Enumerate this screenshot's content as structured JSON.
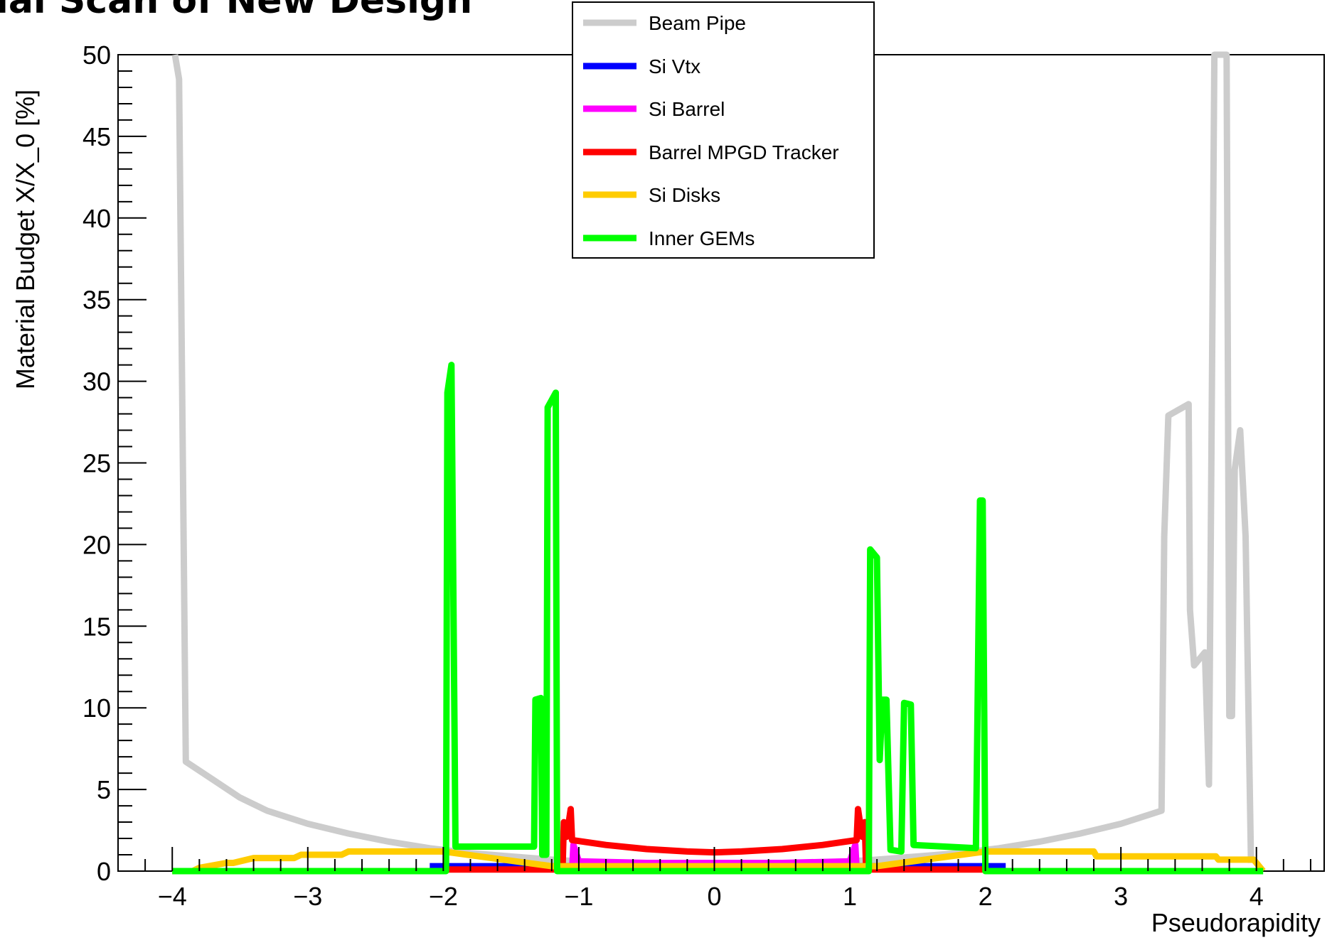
{
  "slide": {
    "title": "ial Scan of New Design"
  },
  "chart_data": {
    "type": "line",
    "title": "",
    "xlabel": "Pseudorapidity",
    "ylabel": "Material Budget X/X_0 [%]",
    "xlim": [
      -4.4,
      4.5
    ],
    "ylim": [
      0,
      50
    ],
    "x_ticks": [
      {
        "value": -4,
        "label": "−4"
      },
      {
        "value": -3,
        "label": "−3"
      },
      {
        "value": -2,
        "label": "−2"
      },
      {
        "value": -1,
        "label": "−1"
      },
      {
        "value": 0,
        "label": "0"
      },
      {
        "value": 1,
        "label": "1"
      },
      {
        "value": 2,
        "label": "2"
      },
      {
        "value": 3,
        "label": "3"
      },
      {
        "value": 4,
        "label": "4"
      }
    ],
    "y_ticks": [
      {
        "value": 0,
        "label": "0"
      },
      {
        "value": 5,
        "label": "5"
      },
      {
        "value": 10,
        "label": "10"
      },
      {
        "value": 15,
        "label": "15"
      },
      {
        "value": 20,
        "label": "20"
      },
      {
        "value": 25,
        "label": "25"
      },
      {
        "value": 30,
        "label": "30"
      },
      {
        "value": 35,
        "label": "35"
      },
      {
        "value": 40,
        "label": "40"
      },
      {
        "value": 45,
        "label": "45"
      },
      {
        "value": 50,
        "label": "50"
      }
    ],
    "grid": false,
    "legend_position": "top-center",
    "series": [
      {
        "name": "Beam Pipe",
        "color": "#cccccc",
        "points": [
          [
            -3.98,
            50
          ],
          [
            -3.95,
            48.5
          ],
          [
            -3.9,
            6.7
          ],
          [
            -3.7,
            5.6
          ],
          [
            -3.5,
            4.5
          ],
          [
            -3.3,
            3.7
          ],
          [
            -3.0,
            2.9
          ],
          [
            -2.7,
            2.3
          ],
          [
            -2.4,
            1.8
          ],
          [
            -2.1,
            1.4
          ],
          [
            -1.8,
            1.1
          ],
          [
            -1.5,
            0.9
          ],
          [
            -1.2,
            0.7
          ],
          [
            -1.0,
            0.6
          ],
          [
            -0.5,
            0.45
          ],
          [
            0,
            0.4
          ],
          [
            0.5,
            0.45
          ],
          [
            1.0,
            0.6
          ],
          [
            1.2,
            0.7
          ],
          [
            1.5,
            0.9
          ],
          [
            1.8,
            1.1
          ],
          [
            2.1,
            1.4
          ],
          [
            2.4,
            1.8
          ],
          [
            2.7,
            2.3
          ],
          [
            3.0,
            2.9
          ],
          [
            3.3,
            3.7
          ],
          [
            3.32,
            20.5
          ],
          [
            3.35,
            27.9
          ],
          [
            3.5,
            28.6
          ],
          [
            3.51,
            16
          ],
          [
            3.54,
            12.6
          ],
          [
            3.62,
            13.4
          ],
          [
            3.65,
            5.3
          ],
          [
            3.69,
            50
          ],
          [
            3.73,
            50
          ],
          [
            3.78,
            50
          ],
          [
            3.8,
            9.5
          ],
          [
            3.82,
            9.5
          ],
          [
            3.84,
            24.6
          ],
          [
            3.88,
            27
          ],
          [
            3.92,
            20.5
          ],
          [
            3.96,
            0.5
          ]
        ]
      },
      {
        "name": "Si Vtx",
        "color": "#0000ff",
        "points": [
          [
            -2.1,
            0.3
          ],
          [
            -1.0,
            0.3
          ],
          [
            1.0,
            0.3
          ],
          [
            2.15,
            0.3
          ]
        ]
      },
      {
        "name": "Si Barrel",
        "color": "#ff00ff",
        "points": [
          [
            -1.05,
            0
          ],
          [
            -1.04,
            1.6
          ],
          [
            -1.0,
            0.6
          ],
          [
            -0.5,
            0.5
          ],
          [
            0,
            0.5
          ],
          [
            0.5,
            0.5
          ],
          [
            1.0,
            0.6
          ],
          [
            1.04,
            1.6
          ],
          [
            1.05,
            0
          ]
        ]
      },
      {
        "name": "Barrel MPGD Tracker",
        "color": "#ff0000",
        "points": [
          [
            -2.0,
            0.1
          ],
          [
            -1.12,
            0.1
          ],
          [
            -1.11,
            3.0
          ],
          [
            -1.09,
            2.1
          ],
          [
            -1.06,
            3.8
          ],
          [
            -1.05,
            1.9
          ],
          [
            -0.8,
            1.6
          ],
          [
            -0.5,
            1.35
          ],
          [
            -0.2,
            1.2
          ],
          [
            0,
            1.15
          ],
          [
            0.2,
            1.2
          ],
          [
            0.5,
            1.35
          ],
          [
            0.8,
            1.6
          ],
          [
            1.05,
            1.9
          ],
          [
            1.06,
            3.8
          ],
          [
            1.09,
            2.1
          ],
          [
            1.11,
            3.0
          ],
          [
            1.12,
            0.1
          ],
          [
            2.0,
            0.1
          ]
        ]
      },
      {
        "name": "Si Disks",
        "color": "#ffcc00",
        "points": [
          [
            -4.0,
            0
          ],
          [
            -3.85,
            0
          ],
          [
            -3.8,
            0.2
          ],
          [
            -3.6,
            0.5
          ],
          [
            -3.55,
            0.5
          ],
          [
            -3.4,
            0.8
          ],
          [
            -3.1,
            0.8
          ],
          [
            -3.05,
            1.0
          ],
          [
            -2.75,
            1.0
          ],
          [
            -2.7,
            1.2
          ],
          [
            -2.0,
            1.2
          ],
          [
            -1.2,
            0.3
          ],
          [
            -1.0,
            0.3
          ],
          [
            1.0,
            0.3
          ],
          [
            1.2,
            0.3
          ],
          [
            2.0,
            1.2
          ],
          [
            2.8,
            1.2
          ],
          [
            2.82,
            0.9
          ],
          [
            3.7,
            0.9
          ],
          [
            3.72,
            0.7
          ],
          [
            3.98,
            0.7
          ],
          [
            4.05,
            0
          ]
        ]
      },
      {
        "name": "Inner GEMs",
        "color": "#00ff00",
        "points": [
          [
            -4.0,
            0
          ],
          [
            -1.98,
            0
          ],
          [
            -1.97,
            29.3
          ],
          [
            -1.94,
            31.0
          ],
          [
            -1.91,
            1.5
          ],
          [
            -1.35,
            1.5
          ],
          [
            -1.33,
            1.5
          ],
          [
            -1.32,
            10.5
          ],
          [
            -1.28,
            10.6
          ],
          [
            -1.27,
            1.0
          ],
          [
            -1.24,
            1.0
          ],
          [
            -1.23,
            28.4
          ],
          [
            -1.17,
            29.3
          ],
          [
            -1.16,
            0
          ],
          [
            1.14,
            0
          ],
          [
            1.15,
            19.7
          ],
          [
            1.2,
            19.2
          ],
          [
            1.22,
            6.8
          ],
          [
            1.24,
            10.5
          ],
          [
            1.27,
            10.5
          ],
          [
            1.3,
            1.3
          ],
          [
            1.38,
            1.2
          ],
          [
            1.4,
            10.3
          ],
          [
            1.45,
            10.2
          ],
          [
            1.47,
            1.6
          ],
          [
            1.93,
            1.4
          ],
          [
            1.96,
            22.7
          ],
          [
            1.98,
            22.7
          ],
          [
            2.0,
            0
          ],
          [
            4.05,
            0
          ]
        ]
      }
    ]
  }
}
